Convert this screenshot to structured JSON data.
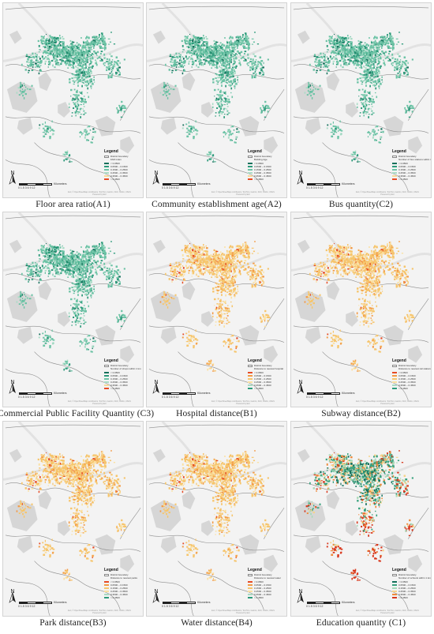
{
  "legend_title": "Legend",
  "boundary_label": "District boundary",
  "scale_ticks": "0 1.5 3    6    9    12",
  "scale_unit": "Kilometers",
  "north_label": "N",
  "source_line1": "Esri, © OpenStreetMap contributors, TomTom, Garmin, FAO, NOAA, USGS",
  "source_line2": "Powered by Esri",
  "class_labels": [
    "< 0.0500",
    "0.0500 – 0.1500",
    "0.1500 – 0.2500",
    "0.2500 – 0.3500",
    "0.3500 – 0.4500",
    "> 0.4500"
  ],
  "colors": {
    "map_bg": "#f3f3f3",
    "river": "#e2e2e2",
    "water": "#d6d6d6",
    "boundary": "#8c8c8c",
    "green_scheme": [
      "#14705b",
      "#2c9a7a",
      "#6cc3a5",
      "#aadcc6",
      "#f5d99a",
      "#e64a24"
    ],
    "orange_scheme": [
      "#e64a24",
      "#f39a45",
      "#f6c56c",
      "#fbe0a0",
      "#a9d9c3",
      "#2c9a7a"
    ],
    "mixed_scheme": [
      "#14705b",
      "#39a27e",
      "#a6dab9",
      "#f6d38a",
      "#ef8a3a",
      "#d8361b"
    ]
  },
  "panels": [
    {
      "id": "A1",
      "caption": "Floor area ratio(A1)",
      "variable": "FAR index",
      "scheme": "green"
    },
    {
      "id": "A2",
      "caption": "Community establishment age(A2)",
      "variable": "Building Age",
      "scheme": "green"
    },
    {
      "id": "C2",
      "caption": "Bus quantity(C2)",
      "variable": "Number of bus stations within 1 km",
      "scheme": "green"
    },
    {
      "id": "C3",
      "caption": "Commercial Public Facility Quantity (C3)",
      "variable": "Number of shops within 1 km",
      "scheme": "green"
    },
    {
      "id": "B1",
      "caption": "Hospital distance(B1)",
      "variable": "Distance to nearest hospital",
      "scheme": "orange"
    },
    {
      "id": "B2",
      "caption": "Subway distance(B2)",
      "variable": "Distance to nearest rail stations",
      "scheme": "orange"
    },
    {
      "id": "B3",
      "caption": "Park distance(B3)",
      "variable": "Distance to nearest parks",
      "scheme": "orange"
    },
    {
      "id": "B4",
      "caption": "Water distance(B4)",
      "variable": "Distance to nearest water",
      "scheme": "orange"
    },
    {
      "id": "C1",
      "caption": "Education quantity (C1)",
      "variable": "Number of schools within 1 km",
      "scheme": "mixed"
    }
  ]
}
